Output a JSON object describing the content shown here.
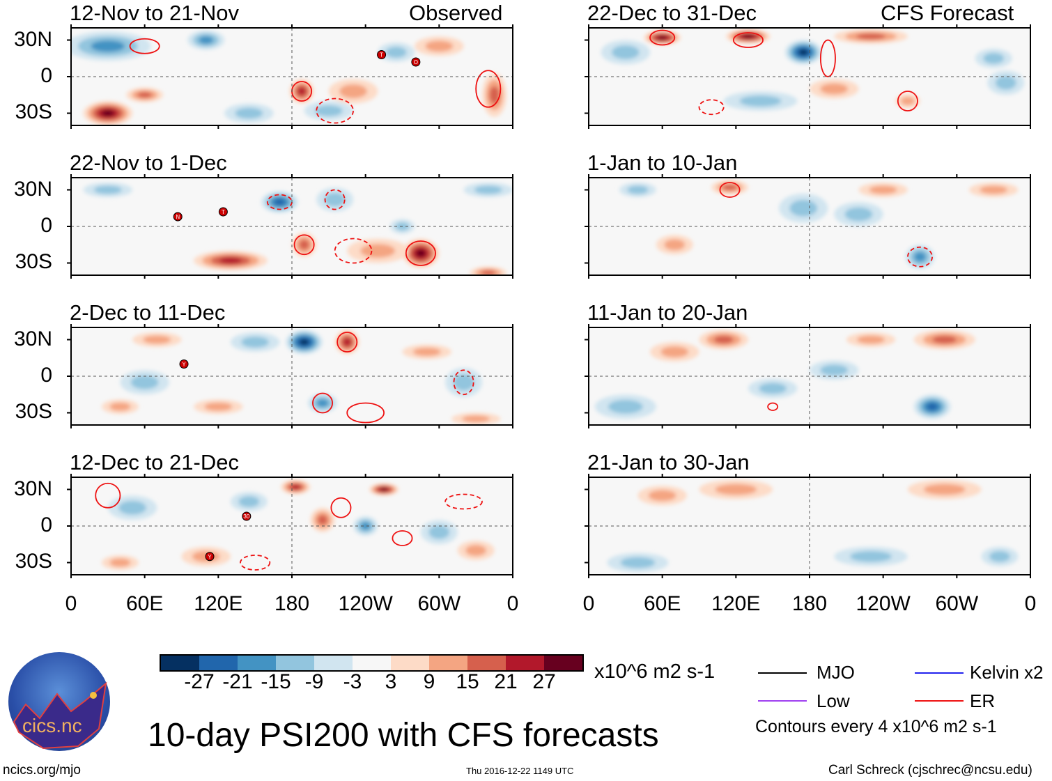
{
  "header": {
    "observed": "Observed",
    "forecast": "CFS Forecast"
  },
  "lat_labels": [
    "30N",
    "0",
    "30S"
  ],
  "lon_labels": [
    "0",
    "60E",
    "120E",
    "180",
    "120W",
    "60W",
    "0"
  ],
  "colorbar": {
    "colors": [
      "#053061",
      "#2166ac",
      "#4393c3",
      "#92c5de",
      "#d1e5f0",
      "#f7f7f7",
      "#fddbc7",
      "#f4a582",
      "#d6604d",
      "#b2182b",
      "#67001f"
    ],
    "labels": [
      "-27",
      "-21",
      "-15",
      "-9",
      "-3",
      "3",
      "9",
      "15",
      "21",
      "27"
    ],
    "units": "x10^6 m2 s-1"
  },
  "legend": {
    "items": [
      {
        "label": "MJO",
        "color": "#000000"
      },
      {
        "label": "Kelvin x2",
        "color": "#2222ee"
      },
      {
        "label": "Low",
        "color": "#a040f0"
      },
      {
        "label": "ER",
        "color": "#ee1111"
      }
    ],
    "note": "Contours every 4 x10^6 m2 s-1"
  },
  "title": "10-day PSI200 with CFS forecasts",
  "footer": {
    "left": "ncics.org/mjo",
    "center": "Thu 2016-12-22 1149 UTC",
    "right": "Carl Schreck (cjschrec@ncsu.edu)"
  },
  "logo": {
    "text": "cics.nc",
    "ring": "Cooperative Institute for Climate and Satellites"
  },
  "chart_data": [
    {
      "type": "heatmap",
      "title": "12-Nov to 21-Nov",
      "group": "Observed",
      "xlim": [
        0,
        360
      ],
      "ylim": [
        -40,
        40
      ],
      "anomalies": [
        [
          30,
          25,
          -15,
          35,
          12
        ],
        [
          110,
          30,
          -12,
          15,
          8
        ],
        [
          265,
          20,
          -9,
          15,
          8
        ],
        [
          30,
          -30,
          24,
          20,
          10
        ],
        [
          60,
          -15,
          12,
          15,
          6
        ],
        [
          188,
          -12,
          21,
          10,
          10
        ],
        [
          345,
          -15,
          15,
          10,
          18
        ],
        [
          145,
          -30,
          -6,
          20,
          8
        ],
        [
          210,
          -28,
          -6,
          20,
          8
        ],
        [
          300,
          25,
          6,
          20,
          8
        ],
        [
          230,
          -12,
          6,
          20,
          10
        ]
      ],
      "contours": [
        [
          60,
          25,
          12,
          6,
          0
        ],
        [
          188,
          -12,
          8,
          8,
          0
        ],
        [
          215,
          -28,
          15,
          10,
          1
        ],
        [
          340,
          -10,
          10,
          15,
          0
        ]
      ],
      "storms": [
        [
          253,
          18,
          "T"
        ],
        [
          281,
          12,
          "O"
        ]
      ]
    },
    {
      "type": "heatmap",
      "title": "22-Nov to 1-Dec",
      "group": "Observed",
      "xlim": [
        0,
        360
      ],
      "ylim": [
        -40,
        40
      ],
      "anomalies": [
        [
          170,
          20,
          -18,
          15,
          9
        ],
        [
          215,
          22,
          -9,
          15,
          10
        ],
        [
          340,
          30,
          -9,
          20,
          6
        ],
        [
          30,
          30,
          -6,
          20,
          6
        ],
        [
          270,
          0,
          -9,
          10,
          6
        ],
        [
          130,
          -28,
          18,
          30,
          8
        ],
        [
          190,
          -15,
          15,
          10,
          10
        ],
        [
          285,
          -22,
          27,
          15,
          12
        ],
        [
          340,
          -38,
          15,
          15,
          5
        ],
        [
          250,
          -20,
          9,
          25,
          10
        ]
      ],
      "contours": [
        [
          170,
          20,
          10,
          6,
          1
        ],
        [
          215,
          22,
          8,
          8,
          1
        ],
        [
          190,
          -15,
          8,
          8,
          0
        ],
        [
          285,
          -22,
          12,
          10,
          0
        ],
        [
          230,
          -20,
          15,
          10,
          1
        ]
      ],
      "storms": [
        [
          87,
          8,
          "N"
        ],
        [
          124,
          12,
          "T"
        ]
      ]
    },
    {
      "type": "heatmap",
      "title": "2-Dec to 11-Dec",
      "group": "Observed",
      "xlim": [
        0,
        360
      ],
      "ylim": [
        -40,
        40
      ],
      "anomalies": [
        [
          190,
          28,
          -27,
          15,
          10
        ],
        [
          225,
          28,
          18,
          10,
          10
        ],
        [
          150,
          28,
          -9,
          20,
          8
        ],
        [
          70,
          30,
          9,
          20,
          6
        ],
        [
          60,
          -5,
          -6,
          20,
          10
        ],
        [
          205,
          -22,
          -15,
          12,
          8
        ],
        [
          320,
          -5,
          -6,
          15,
          12
        ],
        [
          40,
          -25,
          9,
          15,
          6
        ],
        [
          290,
          20,
          6,
          20,
          6
        ],
        [
          120,
          -25,
          6,
          20,
          6
        ],
        [
          330,
          -35,
          6,
          20,
          5
        ]
      ],
      "contours": [
        [
          225,
          28,
          8,
          8,
          0
        ],
        [
          205,
          -22,
          8,
          8,
          0
        ],
        [
          240,
          -30,
          15,
          8,
          0
        ],
        [
          320,
          -5,
          8,
          10,
          1
        ]
      ],
      "storms": [
        [
          92,
          10,
          "Y"
        ]
      ]
    },
    {
      "type": "heatmap",
      "title": "12-Dec to 21-Dec",
      "group": "Observed",
      "xlim": [
        0,
        360
      ],
      "ylim": [
        -40,
        40
      ],
      "anomalies": [
        [
          183,
          32,
          21,
          12,
          6
        ],
        [
          255,
          30,
          27,
          12,
          5
        ],
        [
          145,
          20,
          -9,
          15,
          8
        ],
        [
          240,
          0,
          -12,
          10,
          8
        ],
        [
          205,
          5,
          12,
          10,
          10
        ],
        [
          50,
          15,
          -6,
          20,
          10
        ],
        [
          300,
          -5,
          -6,
          15,
          10
        ],
        [
          110,
          -25,
          9,
          20,
          8
        ],
        [
          40,
          -30,
          6,
          15,
          6
        ],
        [
          330,
          -20,
          9,
          15,
          8
        ]
      ],
      "contours": [
        [
          30,
          25,
          10,
          10,
          0
        ],
        [
          220,
          15,
          8,
          8,
          0
        ],
        [
          270,
          -10,
          8,
          6,
          0
        ],
        [
          150,
          -30,
          12,
          6,
          1
        ],
        [
          320,
          20,
          15,
          6,
          1
        ]
      ],
      "storms": [
        [
          143,
          8,
          "30"
        ],
        [
          113,
          -25,
          "Y"
        ]
      ]
    },
    {
      "type": "heatmap",
      "title": "22-Dec to 31-Dec",
      "group": "CFS Forecast",
      "xlim": [
        0,
        360
      ],
      "ylim": [
        -40,
        40
      ],
      "anomalies": [
        [
          60,
          32,
          24,
          15,
          6
        ],
        [
          130,
          33,
          24,
          18,
          6
        ],
        [
          175,
          20,
          -24,
          15,
          10
        ],
        [
          230,
          33,
          15,
          30,
          6
        ],
        [
          30,
          20,
          -9,
          20,
          10
        ],
        [
          140,
          -20,
          -9,
          30,
          8
        ],
        [
          260,
          -20,
          9,
          10,
          6
        ],
        [
          330,
          15,
          -9,
          15,
          8
        ],
        [
          340,
          -5,
          -6,
          15,
          10
        ],
        [
          200,
          -10,
          6,
          20,
          8
        ]
      ],
      "contours": [
        [
          60,
          32,
          10,
          6,
          0
        ],
        [
          130,
          30,
          12,
          6,
          0
        ],
        [
          195,
          15,
          6,
          15,
          0
        ],
        [
          100,
          -25,
          10,
          6,
          1
        ],
        [
          260,
          -20,
          8,
          8,
          0
        ]
      ],
      "storms": []
    },
    {
      "type": "heatmap",
      "title": "1-Jan to 10-Jan",
      "group": "CFS Forecast",
      "xlim": [
        0,
        360
      ],
      "ylim": [
        -40,
        40
      ],
      "anomalies": [
        [
          115,
          32,
          15,
          15,
          6
        ],
        [
          175,
          15,
          -9,
          20,
          12
        ],
        [
          270,
          -25,
          -15,
          12,
          10
        ],
        [
          330,
          30,
          9,
          20,
          6
        ],
        [
          240,
          30,
          6,
          20,
          6
        ],
        [
          70,
          -15,
          6,
          15,
          8
        ],
        [
          220,
          10,
          -6,
          20,
          10
        ],
        [
          40,
          30,
          -6,
          15,
          6
        ]
      ],
      "contours": [
        [
          115,
          30,
          8,
          6,
          0
        ],
        [
          270,
          -25,
          10,
          8,
          1
        ]
      ],
      "storms": []
    },
    {
      "type": "heatmap",
      "title": "11-Jan to 20-Jan",
      "group": "CFS Forecast",
      "xlim": [
        0,
        360
      ],
      "ylim": [
        -40,
        40
      ],
      "anomalies": [
        [
          110,
          30,
          12,
          20,
          8
        ],
        [
          290,
          30,
          12,
          25,
          8
        ],
        [
          200,
          5,
          -9,
          20,
          8
        ],
        [
          280,
          -25,
          -18,
          15,
          10
        ],
        [
          30,
          -25,
          -6,
          25,
          10
        ],
        [
          70,
          20,
          6,
          20,
          8
        ],
        [
          230,
          30,
          9,
          20,
          6
        ],
        [
          150,
          -10,
          -6,
          20,
          8
        ]
      ],
      "contours": [
        [
          150,
          -25,
          4,
          3,
          0
        ]
      ],
      "storms": []
    },
    {
      "type": "heatmap",
      "title": "21-Jan to 30-Jan",
      "group": "CFS Forecast",
      "xlim": [
        0,
        360
      ],
      "ylim": [
        -40,
        40
      ],
      "anomalies": [
        [
          120,
          30,
          9,
          30,
          8
        ],
        [
          290,
          30,
          9,
          30,
          8
        ],
        [
          40,
          -30,
          -9,
          25,
          8
        ],
        [
          230,
          -25,
          -6,
          30,
          8
        ],
        [
          335,
          -25,
          -9,
          15,
          8
        ],
        [
          60,
          25,
          6,
          20,
          8
        ]
      ],
      "contours": [],
      "storms": []
    }
  ]
}
